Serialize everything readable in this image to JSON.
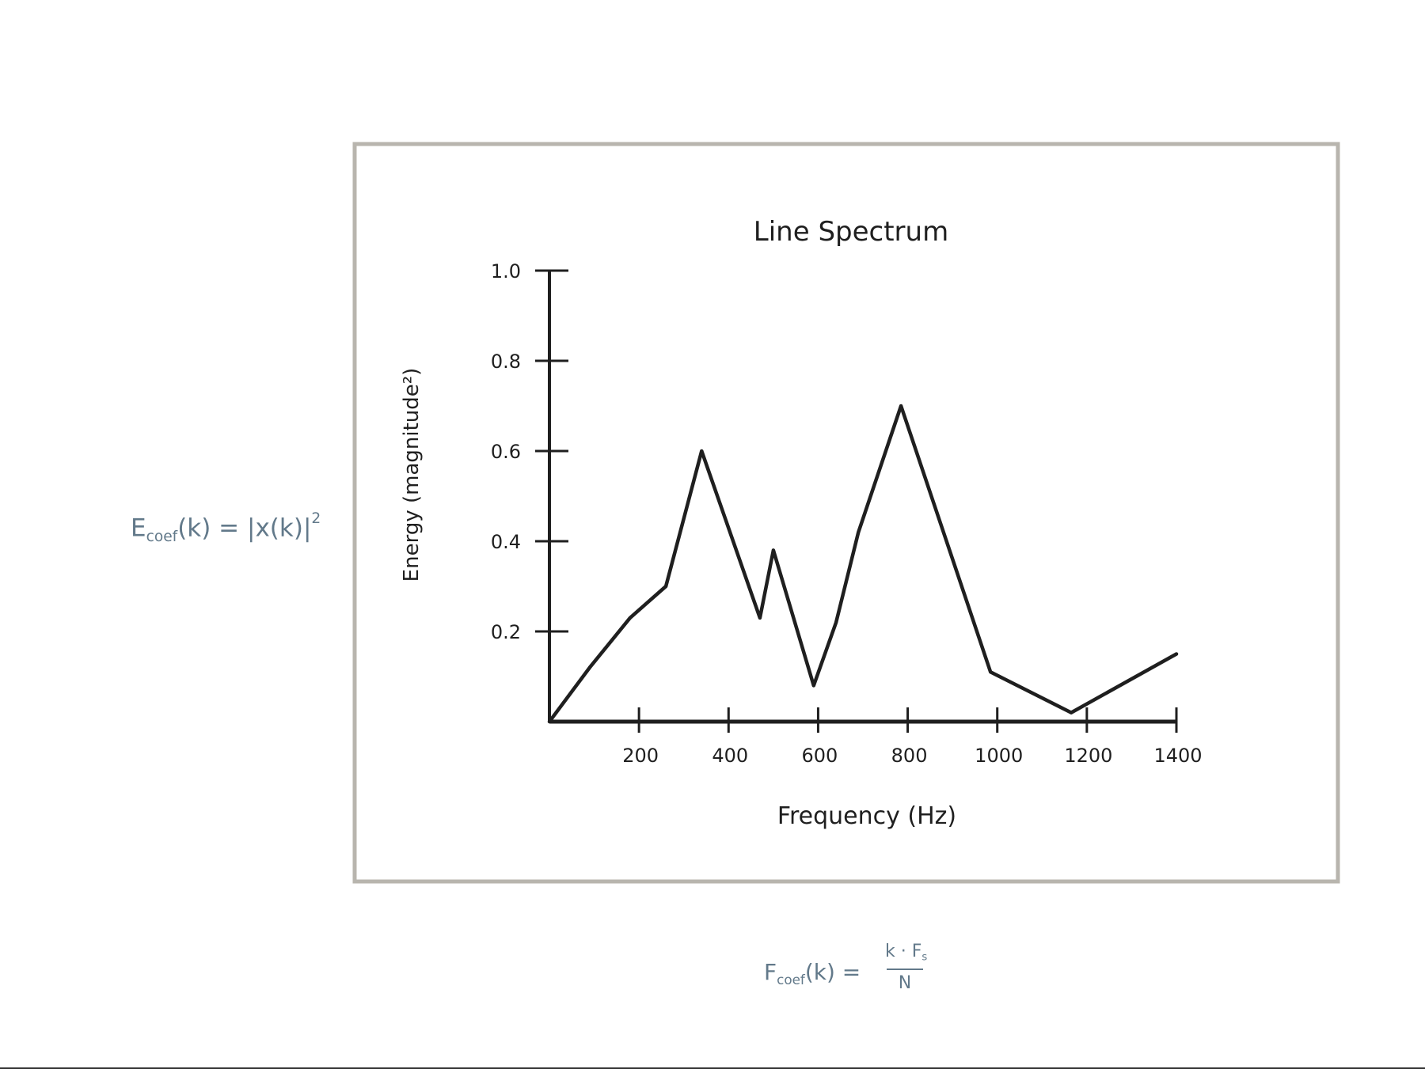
{
  "formulas": {
    "energy": {
      "E": "E",
      "sub": "coef",
      "rest": "(k) = |x(k)|",
      "sup": "2"
    },
    "frequency": {
      "F": "F",
      "sub": "coef",
      "rest": "(k) =",
      "num": "k · F",
      "num_sub": "s",
      "den": "N"
    }
  },
  "colors": {
    "frame": "#b8b5ae",
    "ink": "#1f1f1f",
    "formula": "#62798a"
  },
  "chart_data": {
    "type": "line",
    "title": "Line Spectrum",
    "xlabel": "Frequency (Hz)",
    "ylabel": "Energy (magnitude²)",
    "xlim": [
      0,
      1400
    ],
    "ylim": [
      0,
      1.0
    ],
    "xticks": [
      200,
      400,
      600,
      800,
      1000,
      1200,
      1400
    ],
    "xtick_labels": [
      "200",
      "400",
      "600",
      "800",
      "1000",
      "1200",
      "1400"
    ],
    "yticks": [
      0.2,
      0.4,
      0.6,
      0.8,
      1.0
    ],
    "ytick_labels": [
      "0.2",
      "0.4",
      "0.6",
      "0.8",
      "1.0"
    ],
    "grid": false,
    "series": [
      {
        "x": [
          0,
          90,
          180,
          260,
          340,
          470,
          500,
          590,
          640,
          690,
          785,
          985,
          1165,
          1400
        ],
        "y": [
          0,
          0.12,
          0.23,
          0.3,
          0.6,
          0.23,
          0.38,
          0.08,
          0.22,
          0.42,
          0.7,
          0.11,
          0.02,
          0.15
        ]
      }
    ]
  }
}
